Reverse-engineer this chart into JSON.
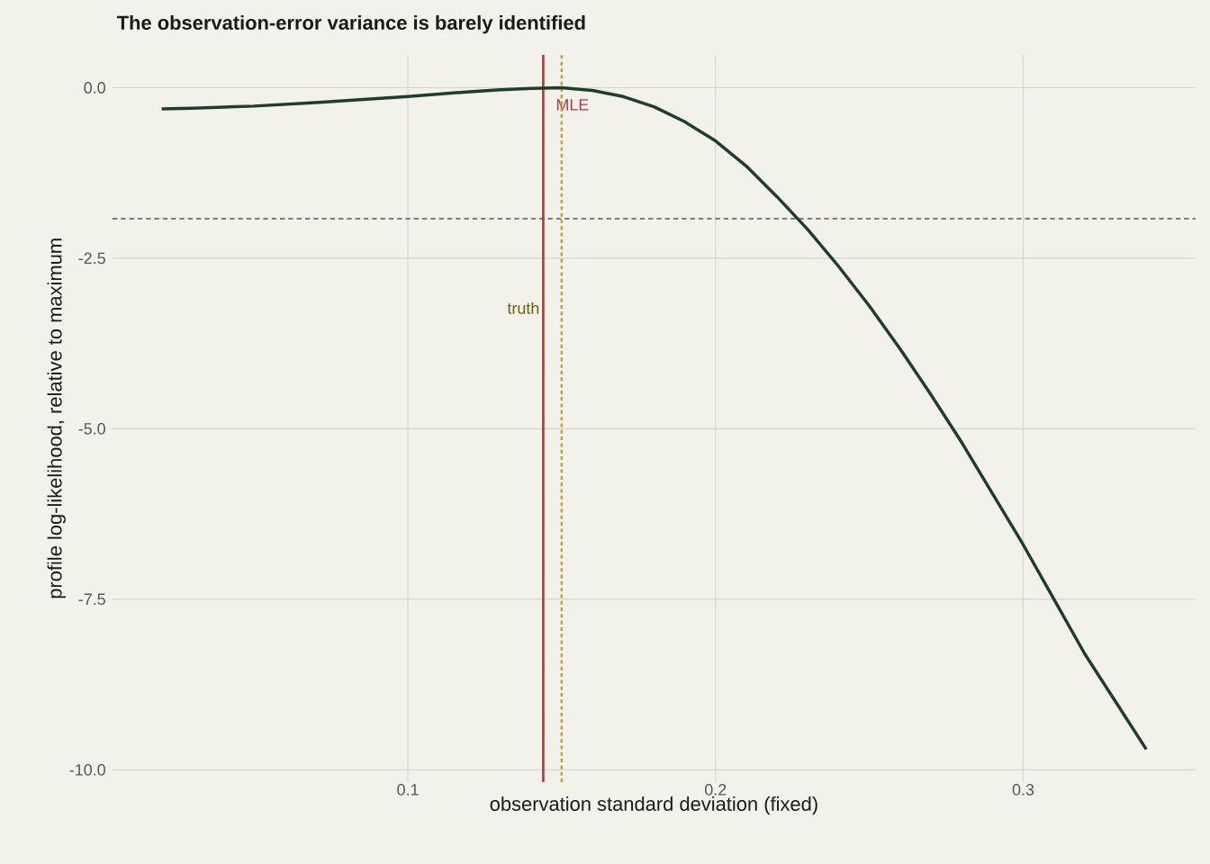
{
  "chart_data": {
    "type": "line",
    "title": "The observation-error variance is barely identified",
    "xlabel": "observation standard deviation (fixed)",
    "ylabel": "profile log-likelihood, relative to maximum",
    "x": [
      0.02,
      0.03,
      0.05,
      0.07,
      0.09,
      0.1,
      0.12,
      0.13,
      0.14,
      0.15,
      0.16,
      0.17,
      0.18,
      0.19,
      0.2,
      0.21,
      0.22,
      0.23,
      0.24,
      0.25,
      0.26,
      0.27,
      0.28,
      0.29,
      0.3,
      0.31,
      0.32,
      0.33,
      0.34
    ],
    "series": [
      {
        "color": "#1f3d2b",
        "values": [
          -0.31,
          -0.3,
          -0.27,
          -0.22,
          -0.16,
          -0.13,
          -0.06,
          -0.03,
          -0.01,
          0,
          -0.04,
          -0.13,
          -0.28,
          -0.5,
          -0.78,
          -1.15,
          -1.6,
          -2.08,
          -2.62,
          -3.2,
          -3.83,
          -4.5,
          -5.2,
          -5.95,
          -6.7,
          -7.5,
          -8.3,
          -9.0,
          -9.7
        ]
      }
    ],
    "xlim": [
      0.004,
      0.356
    ],
    "ylim": [
      -10.18,
      0.485
    ],
    "xticks": [
      0.1,
      0.2,
      0.3
    ],
    "yticks": [
      {
        "value": 0,
        "label": "0.0"
      },
      -2.5,
      {
        "value": -5,
        "label": "-5.0"
      },
      -7.5,
      {
        "value": -10,
        "label": "-10.0"
      }
    ],
    "ref_lines": [
      {
        "axis": "x",
        "value": 0.144,
        "label": "MLE",
        "color": "#b03a3a",
        "line_style": "solid"
      },
      {
        "axis": "x",
        "value": 0.15,
        "label": "truth",
        "color": "#b5a642",
        "line_style": "dotted"
      },
      {
        "axis": "y",
        "value": -1.92,
        "color": "#555555",
        "line_style": "dashed"
      }
    ],
    "grid": true,
    "marker": "none",
    "line_style": "solid"
  }
}
